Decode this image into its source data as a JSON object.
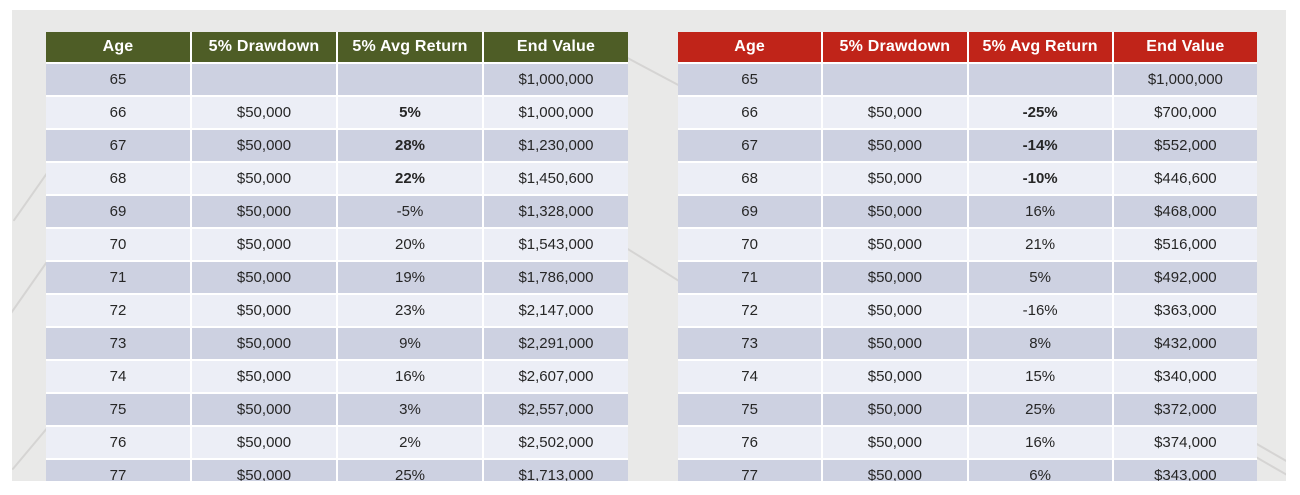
{
  "slide": {
    "background_color": "#e9e9e8",
    "frame_color": "#ffffff"
  },
  "theme": {
    "green_header": "#4e5d26",
    "red_header": "#c02419",
    "dark_row": "#cdd1e1",
    "light_row": "#eceef6",
    "header_text": "#ffffff",
    "cell_text": "#262626"
  },
  "chart_data": [
    {
      "type": "table",
      "theme": "green",
      "header_color": "#4e5d26",
      "columns": [
        "Age",
        "5% Drawdown",
        "5% Avg Return",
        "End Value"
      ],
      "bold_return_rows": [
        1,
        2,
        3
      ],
      "rows": [
        [
          "65",
          "",
          "",
          "$1,000,000"
        ],
        [
          "66",
          "$50,000",
          "5%",
          "$1,000,000"
        ],
        [
          "67",
          "$50,000",
          "28%",
          "$1,230,000"
        ],
        [
          "68",
          "$50,000",
          "22%",
          "$1,450,600"
        ],
        [
          "69",
          "$50,000",
          "-5%",
          "$1,328,000"
        ],
        [
          "70",
          "$50,000",
          "20%",
          "$1,543,000"
        ],
        [
          "71",
          "$50,000",
          "19%",
          "$1,786,000"
        ],
        [
          "72",
          "$50,000",
          "23%",
          "$2,147,000"
        ],
        [
          "73",
          "$50,000",
          "9%",
          "$2,291,000"
        ],
        [
          "74",
          "$50,000",
          "16%",
          "$2,607,000"
        ],
        [
          "75",
          "$50,000",
          "3%",
          "$2,557,000"
        ],
        [
          "76",
          "$50,000",
          "2%",
          "$2,502,000"
        ],
        [
          "77",
          "$50,000",
          "25%",
          "$1,713,000"
        ]
      ]
    },
    {
      "type": "table",
      "theme": "red",
      "header_color": "#c02419",
      "columns": [
        "Age",
        "5% Drawdown",
        "5% Avg Return",
        "End Value"
      ],
      "bold_return_rows": [
        1,
        2,
        3
      ],
      "rows": [
        [
          "65",
          "",
          "",
          "$1,000,000"
        ],
        [
          "66",
          "$50,000",
          "-25%",
          "$700,000"
        ],
        [
          "67",
          "$50,000",
          "-14%",
          "$552,000"
        ],
        [
          "68",
          "$50,000",
          "-10%",
          "$446,600"
        ],
        [
          "69",
          "$50,000",
          "16%",
          "$468,000"
        ],
        [
          "70",
          "$50,000",
          "21%",
          "$516,000"
        ],
        [
          "71",
          "$50,000",
          "5%",
          "$492,000"
        ],
        [
          "72",
          "$50,000",
          "-16%",
          "$363,000"
        ],
        [
          "73",
          "$50,000",
          "8%",
          "$432,000"
        ],
        [
          "74",
          "$50,000",
          "15%",
          "$340,000"
        ],
        [
          "75",
          "$50,000",
          "25%",
          "$372,000"
        ],
        [
          "76",
          "$50,000",
          "16%",
          "$374,000"
        ],
        [
          "77",
          "$50,000",
          "6%",
          "$343,000"
        ]
      ]
    }
  ]
}
